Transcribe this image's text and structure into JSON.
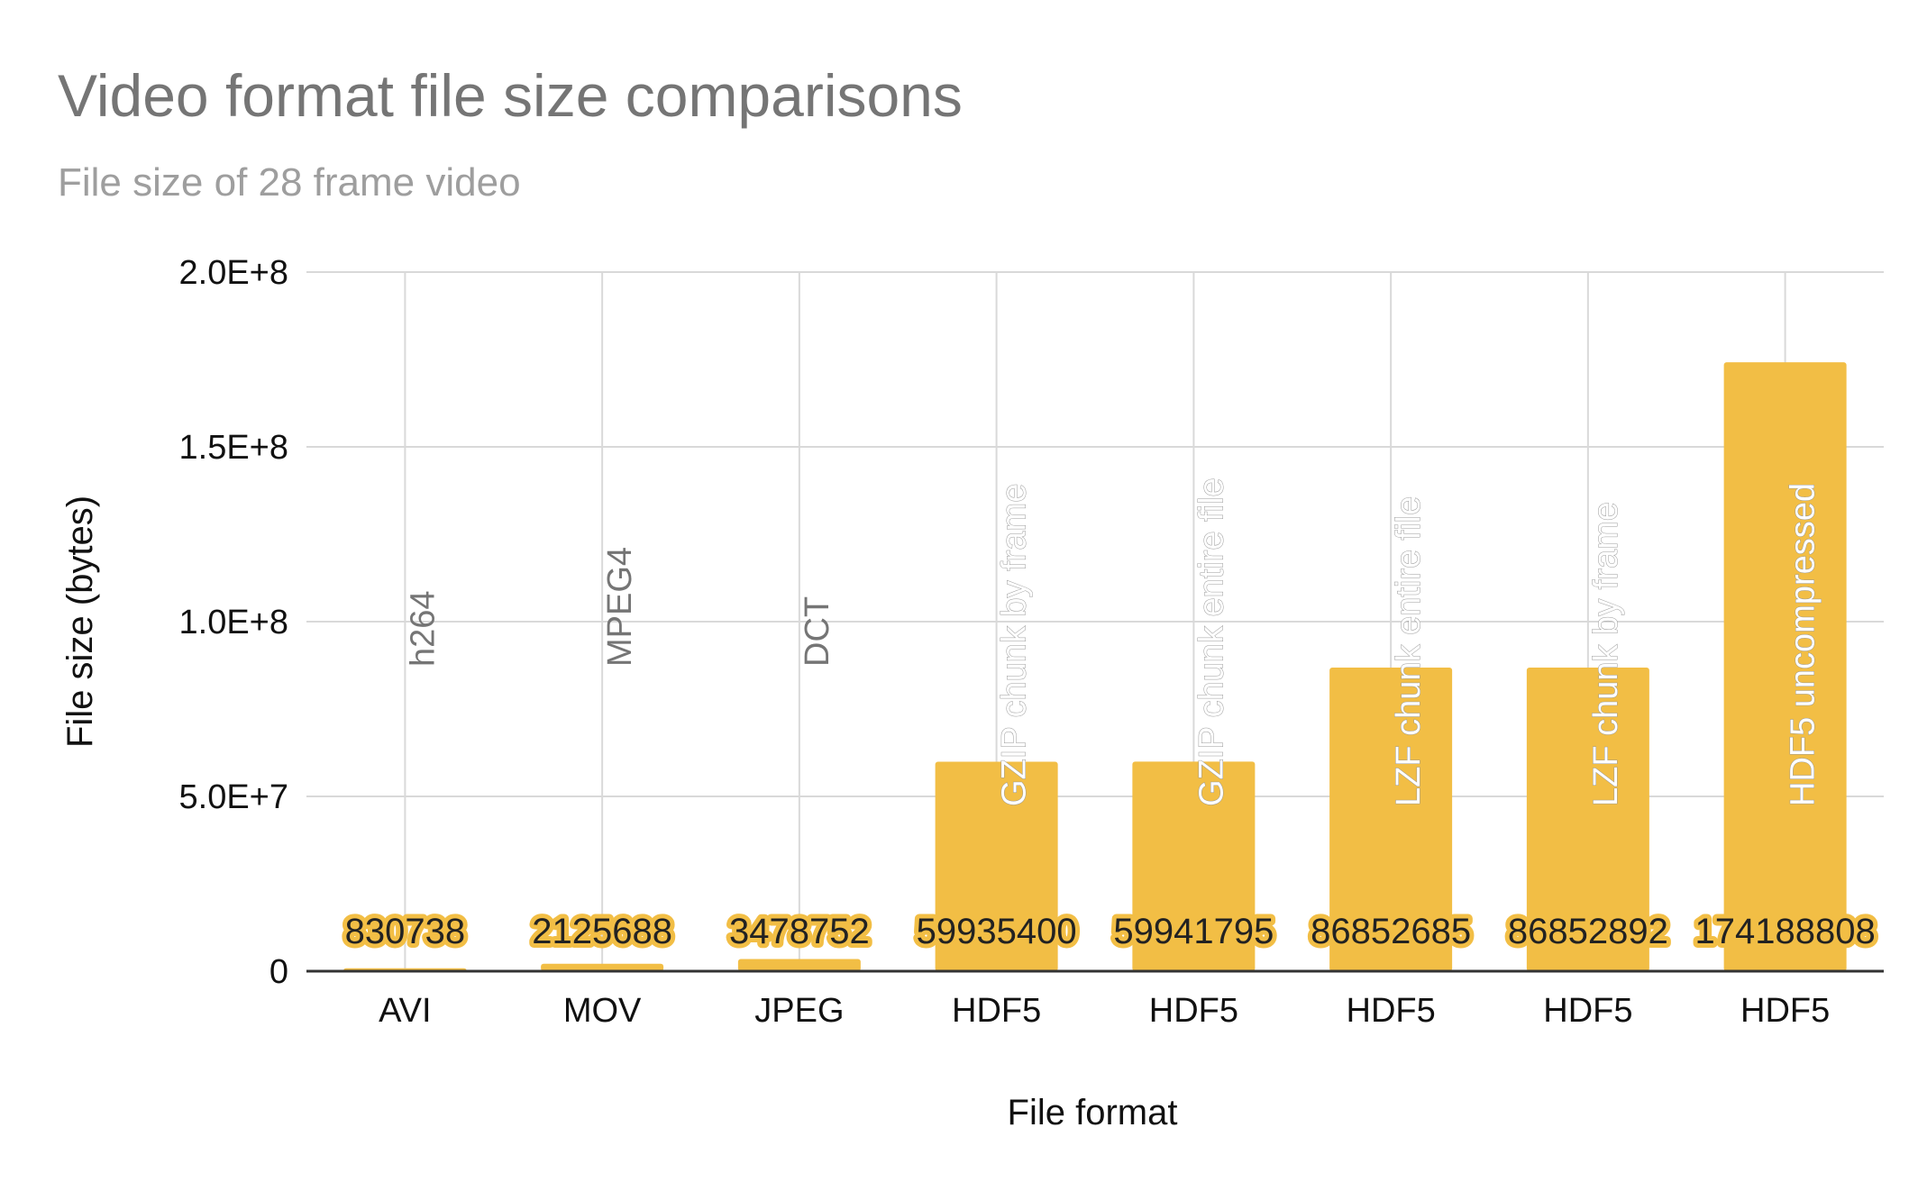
{
  "chart_data": {
    "type": "bar",
    "title": "Video format file size comparisons",
    "subtitle": "File size of 28 frame video",
    "xlabel": "File format",
    "ylabel": "File size (bytes)",
    "categories": [
      "AVI",
      "MOV",
      "JPEG",
      "HDF5",
      "HDF5",
      "HDF5",
      "HDF5",
      "HDF5"
    ],
    "series": [
      {
        "values": [
          830738,
          2125688,
          3478752,
          59935400,
          59941795,
          86852685,
          86852892,
          174188808
        ],
        "data_labels": [
          "830738",
          "2125688",
          "3478752",
          "59935400",
          "59941795",
          "86852685",
          "86852892",
          "174188808"
        ],
        "annotations": [
          "h264",
          "MPEG4",
          "DCT",
          "GZIP chunk by frame",
          "GZIP chunk entire file",
          "LZF chunk entire file",
          "LZF chunk by frame",
          "HDF5 uncompressed"
        ]
      }
    ],
    "ylim": [
      0,
      200000000
    ],
    "yticks": [
      0,
      50000000,
      100000000,
      150000000,
      200000000
    ],
    "ytick_labels": [
      "0",
      "5.0E+7",
      "1.0E+8",
      "1.5E+8",
      "2.0E+8"
    ],
    "grid": true,
    "legend": "none",
    "colors": {
      "bar": "#f2be45",
      "grid": "#d9d9d9",
      "axis": "#333333"
    }
  }
}
